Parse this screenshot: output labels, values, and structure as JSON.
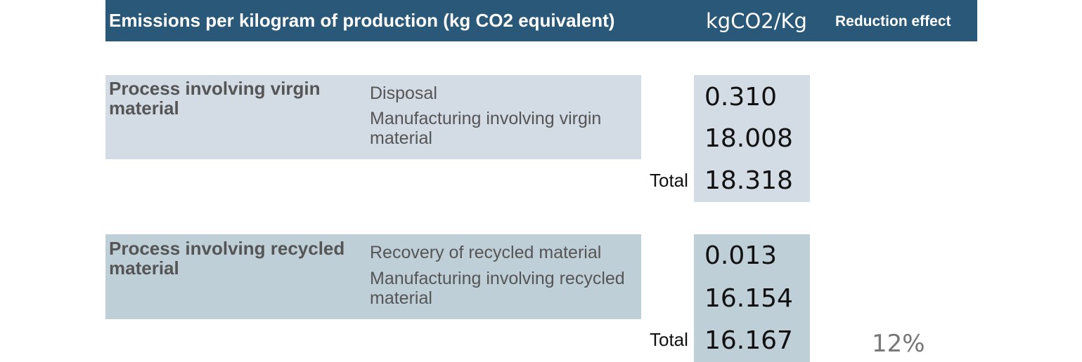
{
  "header": {
    "title": "Emissions per kilogram of production (kg CO2 equivalent)",
    "unit": "kgCO2/Kg",
    "reduction_label": "Reduction effect"
  },
  "groups": [
    {
      "label": "Process involving virgin material",
      "items": [
        "Disposal",
        "Manufacturing involving virgin material"
      ],
      "values": [
        "0.310",
        "18.008"
      ],
      "total_label": "Total",
      "total": "18.318"
    },
    {
      "label": "Process involving recycled material",
      "items": [
        "Recovery of recycled material",
        "Manufacturing involving recycled material"
      ],
      "values": [
        "0.013",
        "16.154"
      ],
      "total_label": "Total",
      "total": "16.167"
    }
  ],
  "reduction_effect": "12%",
  "colors": {
    "header_bg": "#2a5878",
    "virgin_bg": "#d3dbe4",
    "recycled_bg": "#bfcfd8"
  }
}
